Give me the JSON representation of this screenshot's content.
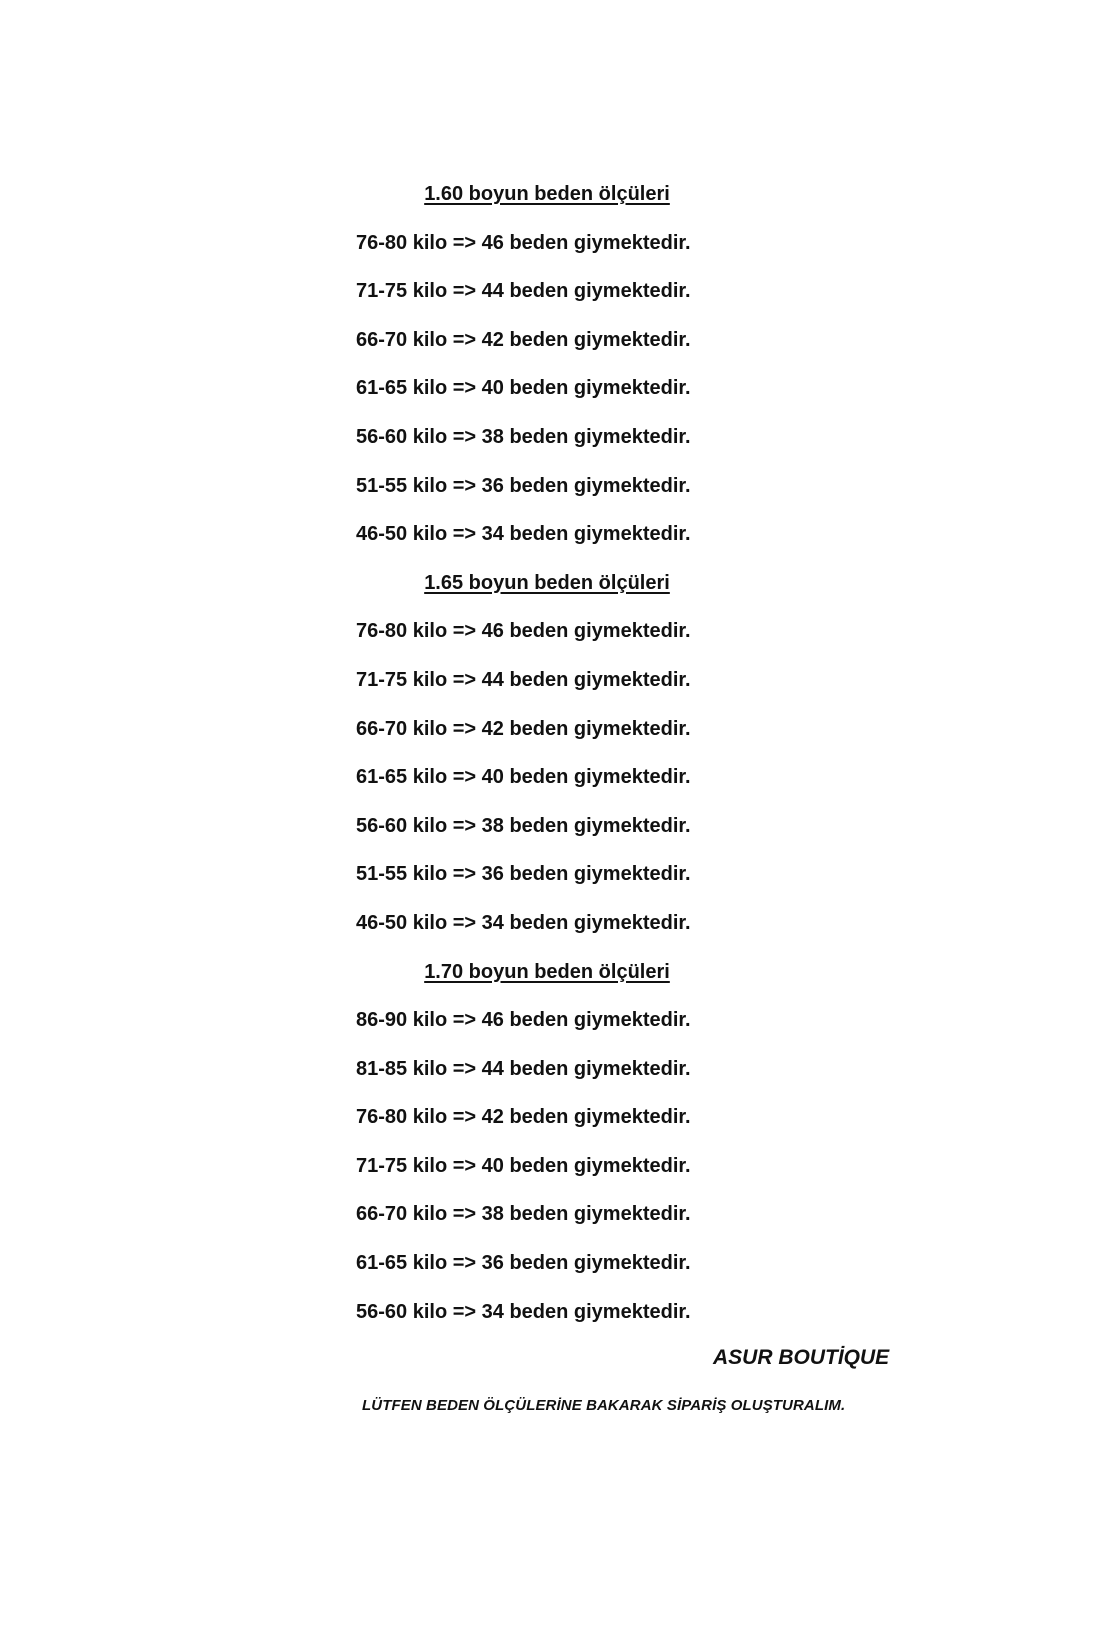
{
  "sections": [
    {
      "heading": "1.60 boyun beden ölçüleri",
      "rows": [
        "76-80 kilo => 46 beden giymektedir.",
        "71-75 kilo => 44 beden giymektedir.",
        "66-70 kilo => 42 beden giymektedir.",
        "61-65 kilo => 40 beden giymektedir.",
        "56-60 kilo => 38 beden giymektedir.",
        "51-55 kilo => 36 beden giymektedir.",
        "46-50 kilo => 34 beden giymektedir."
      ]
    },
    {
      "heading": "1.65 boyun beden ölçüleri",
      "rows": [
        "76-80 kilo => 46 beden giymektedir.",
        "71-75 kilo => 44 beden giymektedir.",
        "66-70 kilo => 42 beden giymektedir.",
        "61-65 kilo => 40 beden giymektedir.",
        "56-60 kilo => 38 beden giymektedir.",
        "51-55 kilo => 36 beden giymektedir.",
        "46-50 kilo => 34 beden giymektedir."
      ]
    },
    {
      "heading": "1.70 boyun beden ölçüleri",
      "rows": [
        "86-90 kilo => 46 beden giymektedir.",
        "81-85 kilo => 44 beden giymektedir.",
        "76-80 kilo => 42 beden giymektedir.",
        "71-75 kilo => 40 beden giymektedir.",
        "66-70 kilo => 38 beden giymektedir.",
        "61-65 kilo => 36 beden giymektedir.",
        "56-60 kilo => 34 beden giymektedir."
      ]
    }
  ],
  "brand": "ASUR BOUTİQUE",
  "note": "LÜTFEN BEDEN ÖLÇÜLERİNE BAKARAK SİPARİŞ OLUŞTURALIM."
}
